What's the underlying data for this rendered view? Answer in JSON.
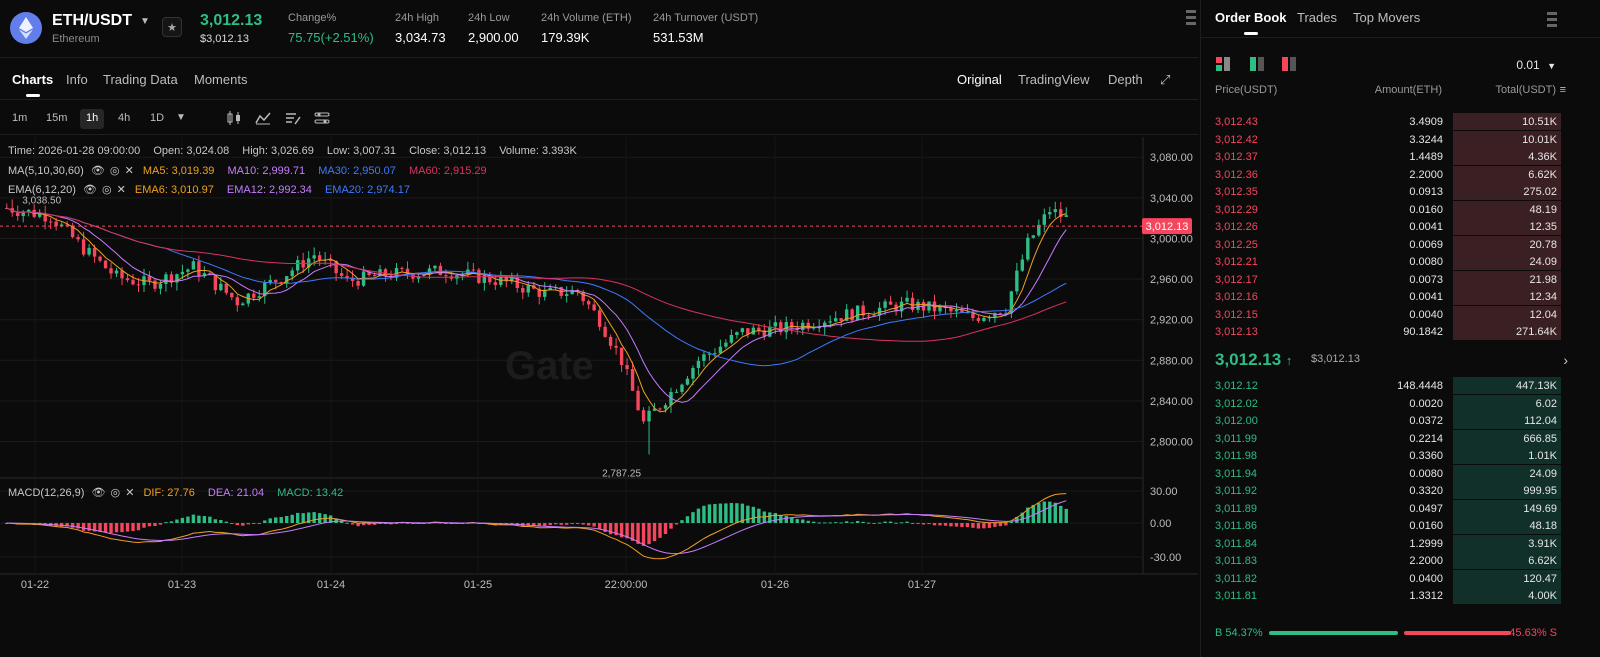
{
  "header": {
    "pair": "ETH/USDT",
    "pair_sub": "Ethereum",
    "last_price": "3,012.13",
    "last_price_fiat": "$3,012.13",
    "stats": [
      {
        "label": "Change%",
        "value": "75.75(+2.51%)",
        "positive": true
      },
      {
        "label": "24h High",
        "value": "3,034.73"
      },
      {
        "label": "24h Low",
        "value": "2,900.00"
      },
      {
        "label": "24h Volume (ETH)",
        "value": "179.39K"
      },
      {
        "label": "24h Turnover (USDT)",
        "value": "531.53M"
      }
    ]
  },
  "tabs": [
    "Charts",
    "Info",
    "Trading Data",
    "Moments"
  ],
  "active_tab": "Charts",
  "view_tabs": [
    "Original",
    "TradingView",
    "Depth"
  ],
  "active_view": "Original",
  "intervals": [
    "1m",
    "15m",
    "1h",
    "4h",
    "1D"
  ],
  "active_interval": "1h",
  "chart_info": {
    "time": "Time: 2026-01-28 09:00:00",
    "open": "Open: 3,024.08",
    "high": "High: 3,026.69",
    "low": "Low: 3,007.31",
    "close": "Close: 3,012.13",
    "volume": "Volume: 3.393K",
    "ma_label": "MA(5,10,30,60)",
    "ma5": "MA5: 3,019.39",
    "ma10": "MA10: 2,999.71",
    "ma30": "MA30: 2,950.07",
    "ma60": "MA60: 2,915.29",
    "ema_label": "EMA(6,12,20)",
    "ema6": "EMA6: 3,010.97",
    "ema12": "EMA12: 2,992.34",
    "ema20": "EMA20: 2,974.17",
    "macd_label": "MACD(12,26,9)",
    "dif": "DIF: 27.76",
    "dea": "DEA: 21.04",
    "macd": "MACD: 13.42",
    "hi_marker": "3,038.50",
    "lo_marker": "2,787.25",
    "price_tag": "3,012.13",
    "watermark": "Gate"
  },
  "colors": {
    "up": "#2ebd85",
    "down": "#f6465d",
    "ma5": "#f0a020",
    "ma10": "#c77dff",
    "ma30": "#3d7bff",
    "ma60": "#d8345f"
  },
  "chart_data": {
    "type": "candlestick",
    "price_axis": [
      "3,080.00",
      "3,040.00",
      "3,000.00",
      "2,960.00",
      "2,920.00",
      "2,880.00",
      "2,840.00",
      "2,800.00"
    ],
    "macd_axis": [
      "30.00",
      "0.00",
      "-30.00"
    ],
    "x_labels": [
      "01-22",
      "01-23",
      "01-24",
      "01-25",
      "22:00:00",
      "01-26",
      "01-27"
    ],
    "ylim": [
      2770,
      3095
    ],
    "anchors": [
      [
        0,
        3030
      ],
      [
        8,
        3022
      ],
      [
        14,
        2990
      ],
      [
        20,
        2962
      ],
      [
        26,
        2955
      ],
      [
        34,
        2972
      ],
      [
        42,
        2938
      ],
      [
        50,
        2962
      ],
      [
        56,
        2984
      ],
      [
        62,
        2958
      ],
      [
        70,
        2965
      ],
      [
        80,
        2968
      ],
      [
        90,
        2958
      ],
      [
        98,
        2946
      ],
      [
        104,
        2948
      ],
      [
        108,
        2920
      ],
      [
        112,
        2880
      ],
      [
        116,
        2818
      ],
      [
        120,
        2842
      ],
      [
        126,
        2880
      ],
      [
        134,
        2908
      ],
      [
        142,
        2912
      ],
      [
        150,
        2922
      ],
      [
        158,
        2930
      ],
      [
        164,
        2935
      ],
      [
        170,
        2930
      ],
      [
        176,
        2922
      ],
      [
        182,
        2932
      ],
      [
        186,
        2995
      ],
      [
        190,
        3028
      ],
      [
        193,
        3020
      ]
    ],
    "candle_count": 194
  },
  "orderbook": {
    "tabs": [
      "Order Book",
      "Trades",
      "Top Movers"
    ],
    "active_tab": "Order Book",
    "precision": "0.01",
    "headers": {
      "price": "Price(USDT)",
      "amount": "Amount(ETH)",
      "total": "Total(USDT)"
    },
    "asks": [
      {
        "price": "3,012.43",
        "amount": "3.4909",
        "total": "10.51K",
        "depth": 0.98
      },
      {
        "price": "3,012.42",
        "amount": "3.3244",
        "total": "10.01K",
        "depth": 0.98
      },
      {
        "price": "3,012.37",
        "amount": "1.4489",
        "total": "4.36K",
        "depth": 0.98
      },
      {
        "price": "3,012.36",
        "amount": "2.2000",
        "total": "6.62K",
        "depth": 0.98
      },
      {
        "price": "3,012.35",
        "amount": "0.0913",
        "total": "275.02",
        "depth": 0.98
      },
      {
        "price": "3,012.29",
        "amount": "0.0160",
        "total": "48.19",
        "depth": 0.98
      },
      {
        "price": "3,012.26",
        "amount": "0.0041",
        "total": "12.35",
        "depth": 0.98
      },
      {
        "price": "3,012.25",
        "amount": "0.0069",
        "total": "20.78",
        "depth": 0.98
      },
      {
        "price": "3,012.21",
        "amount": "0.0080",
        "total": "24.09",
        "depth": 0.98
      },
      {
        "price": "3,012.17",
        "amount": "0.0073",
        "total": "21.98",
        "depth": 0.98
      },
      {
        "price": "3,012.16",
        "amount": "0.0041",
        "total": "12.34",
        "depth": 0.98
      },
      {
        "price": "3,012.15",
        "amount": "0.0040",
        "total": "12.04",
        "depth": 0.98
      },
      {
        "price": "3,012.13",
        "amount": "90.1842",
        "total": "271.64K",
        "depth": 0.98
      }
    ],
    "mid_price": "3,012.13",
    "mid_fiat": "$3,012.13",
    "bids": [
      {
        "price": "3,012.12",
        "amount": "148.4448",
        "total": "447.13K",
        "depth": 0.98
      },
      {
        "price": "3,012.02",
        "amount": "0.0020",
        "total": "6.02",
        "depth": 0.98
      },
      {
        "price": "3,012.00",
        "amount": "0.0372",
        "total": "112.04",
        "depth": 0.98
      },
      {
        "price": "3,011.99",
        "amount": "0.2214",
        "total": "666.85",
        "depth": 0.98
      },
      {
        "price": "3,011.98",
        "amount": "0.3360",
        "total": "1.01K",
        "depth": 0.98
      },
      {
        "price": "3,011.94",
        "amount": "0.0080",
        "total": "24.09",
        "depth": 0.98
      },
      {
        "price": "3,011.92",
        "amount": "0.3320",
        "total": "999.95",
        "depth": 0.98
      },
      {
        "price": "3,011.89",
        "amount": "0.0497",
        "total": "149.69",
        "depth": 0.98
      },
      {
        "price": "3,011.86",
        "amount": "0.0160",
        "total": "48.18",
        "depth": 0.98
      },
      {
        "price": "3,011.84",
        "amount": "1.2999",
        "total": "3.91K",
        "depth": 0.98
      },
      {
        "price": "3,011.83",
        "amount": "2.2000",
        "total": "6.62K",
        "depth": 0.98
      },
      {
        "price": "3,011.82",
        "amount": "0.0400",
        "total": "120.47",
        "depth": 0.98
      },
      {
        "price": "3,011.81",
        "amount": "1.3312",
        "total": "4.00K",
        "depth": 0.98
      }
    ],
    "buy_ratio": "B 54.37%",
    "sell_ratio": "45.63% S",
    "buy_fraction": 0.5437
  }
}
